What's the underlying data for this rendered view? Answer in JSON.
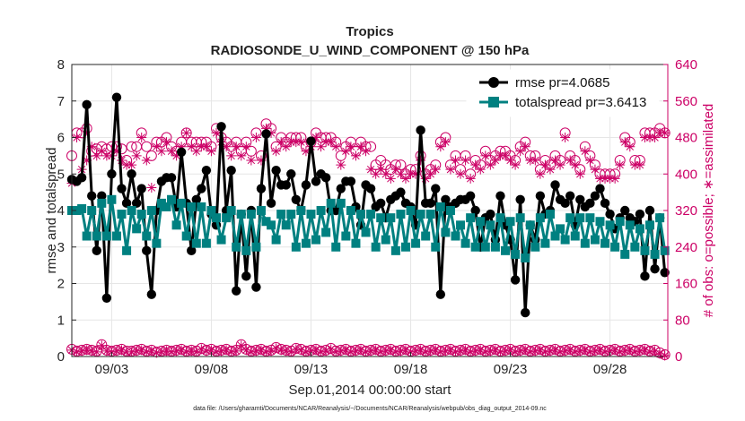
{
  "chart_data": {
    "type": "line",
    "title": "Tropics",
    "subtitle": "RADIOSONDE_U_WIND_COMPONENT @ 150 hPa",
    "xlabel": "Sep.01,2014 00:00:00 start",
    "ylabel_left": "rmse and totalspread",
    "ylabel_right": "# of obs: o=possible; ∗=assimilated",
    "footnote": "data file: /Users/gharamti/Documents/NCAR/Reanalysis/~/Documents/NCAR/Reanalysis/webpub/obs_diag_output_2014-09.nc",
    "xlim": [
      1.0,
      30.9
    ],
    "x_tick_values": [
      3,
      8,
      13,
      18,
      23,
      28
    ],
    "x_tick_labels": [
      "09/03",
      "09/08",
      "09/13",
      "09/18",
      "09/23",
      "09/28"
    ],
    "ylim_left": [
      0,
      8
    ],
    "y_ticks_left": [
      "0",
      "1",
      "2",
      "3",
      "4",
      "5",
      "6",
      "7",
      "8"
    ],
    "ylim_right": [
      0,
      640
    ],
    "y_ticks_right": [
      "0",
      "80",
      "160",
      "240",
      "320",
      "400",
      "480",
      "560",
      "640"
    ],
    "grid": true,
    "legend_position": "top-right",
    "colors": {
      "rmse": "#000000",
      "totalspread": "#008080",
      "obs": "#cc0066",
      "axis": "#262626",
      "grid": "#e6e6e6"
    },
    "x": [
      1.0,
      1.25,
      1.5,
      1.75,
      2.0,
      2.25,
      2.5,
      2.75,
      3.0,
      3.25,
      3.5,
      3.75,
      4.0,
      4.25,
      4.5,
      4.75,
      5.0,
      5.25,
      5.5,
      5.75,
      6.0,
      6.25,
      6.5,
      6.75,
      7.0,
      7.25,
      7.5,
      7.75,
      8.0,
      8.25,
      8.5,
      8.75,
      9.0,
      9.25,
      9.5,
      9.75,
      10.0,
      10.25,
      10.5,
      10.75,
      11.0,
      11.25,
      11.5,
      11.75,
      12.0,
      12.25,
      12.5,
      12.75,
      13.0,
      13.25,
      13.5,
      13.75,
      14.0,
      14.25,
      14.5,
      14.75,
      15.0,
      15.25,
      15.5,
      15.75,
      16.0,
      16.25,
      16.5,
      16.75,
      17.0,
      17.25,
      17.5,
      17.75,
      18.0,
      18.25,
      18.5,
      18.75,
      19.0,
      19.25,
      19.5,
      19.75,
      20.0,
      20.25,
      20.5,
      20.75,
      21.0,
      21.25,
      21.5,
      21.75,
      22.0,
      22.25,
      22.5,
      22.75,
      23.0,
      23.25,
      23.5,
      23.75,
      24.0,
      24.25,
      24.5,
      24.75,
      25.0,
      25.25,
      25.5,
      25.75,
      26.0,
      26.25,
      26.5,
      26.75,
      27.0,
      27.25,
      27.5,
      27.75,
      28.0,
      28.25,
      28.5,
      28.75,
      29.0,
      29.25,
      29.5,
      29.75,
      30.0,
      30.25,
      30.5,
      30.75
    ],
    "series": [
      {
        "name": "rmse",
        "legend": "rmse pr=4.0685",
        "values": [
          4.85,
          4.8,
          4.9,
          6.9,
          4.4,
          2.9,
          4.4,
          1.6,
          5.0,
          7.1,
          4.6,
          4.2,
          5.0,
          4.2,
          4.6,
          2.9,
          1.7,
          4.0,
          4.8,
          4.9,
          4.9,
          4.1,
          5.6,
          4.2,
          2.9,
          4.3,
          4.6,
          5.1,
          3.9,
          3.6,
          6.3,
          4.0,
          5.1,
          1.8,
          3.9,
          2.2,
          4.0,
          1.9,
          4.6,
          6.1,
          4.2,
          5.1,
          4.7,
          4.7,
          5.0,
          4.3,
          4.0,
          4.7,
          5.9,
          4.8,
          5.0,
          4.9,
          4.0,
          4.0,
          4.6,
          4.8,
          4.8,
          4.1,
          3.6,
          4.7,
          4.6,
          4.1,
          4.2,
          3.8,
          4.3,
          4.4,
          4.5,
          4.2,
          4.1,
          3.6,
          6.2,
          4.2,
          4.2,
          4.6,
          1.7,
          4.3,
          4.1,
          4.2,
          4.3,
          4.3,
          4.4,
          4.0,
          3.0,
          3.8,
          3.9,
          3.2,
          4.4,
          3.6,
          3.2,
          2.1,
          4.3,
          1.2,
          3.6,
          3.2,
          4.4,
          3.9,
          4.0,
          4.7,
          4.3,
          4.2,
          4.4,
          3.6,
          4.3,
          4.1,
          4.2,
          4.4,
          4.6,
          4.2,
          3.9,
          3.5,
          3.8,
          4.0,
          3.8,
          3.7,
          3.9,
          2.2,
          4.0,
          2.4,
          3.8,
          2.3
        ]
      },
      {
        "name": "totalspread",
        "legend": "totalspread pr=3.6413",
        "values": [
          4.0,
          4.0,
          4.05,
          3.3,
          4.0,
          3.3,
          4.2,
          3.3,
          4.3,
          3.3,
          3.9,
          2.9,
          4.0,
          3.5,
          3.9,
          3.3,
          4.0,
          3.1,
          4.2,
          4.1,
          4.3,
          3.6,
          4.2,
          3.3,
          4.1,
          3.1,
          4.1,
          3.1,
          4.0,
          3.8,
          3.2,
          3.8,
          4.0,
          3.0,
          3.9,
          2.9,
          3.9,
          3.0,
          4.0,
          3.7,
          3.6,
          3.2,
          3.9,
          3.6,
          3.9,
          3.0,
          4.0,
          3.1,
          3.9,
          3.2,
          4.0,
          3.4,
          4.2,
          3.0,
          4.2,
          3.3,
          4.0,
          3.1,
          3.9,
          3.4,
          3.9,
          3.0,
          3.8,
          3.2,
          3.8,
          2.9,
          3.9,
          3.0,
          4.0,
          3.1,
          3.9,
          3.3,
          3.9,
          3.0,
          4.1,
          3.4,
          4.0,
          3.3,
          3.6,
          3.1,
          3.8,
          3.0,
          3.7,
          3.0,
          3.6,
          3.0,
          3.8,
          2.9,
          3.7,
          2.8,
          3.8,
          2.7,
          3.6,
          3.0,
          3.8,
          3.1,
          3.9,
          3.3,
          3.5,
          3.2,
          3.8,
          3.3,
          3.8,
          3.1,
          3.8,
          3.2,
          3.7,
          3.1,
          3.6,
          3.0,
          3.7,
          2.8,
          3.6,
          3.0,
          3.5,
          2.9,
          3.6,
          2.8,
          3.8,
          2.9
        ]
      },
      {
        "name": "obs_possible",
        "axis": "right",
        "values": [
          440,
          490,
          490,
          500,
          450,
          455,
          460,
          455,
          460,
          460,
          455,
          430,
          460,
          460,
          490,
          460,
          440,
          470,
          470,
          480,
          460,
          450,
          470,
          490,
          470,
          470,
          470,
          470,
          460,
          500,
          480,
          470,
          460,
          470,
          450,
          470,
          450,
          490,
          440,
          510,
          500,
          460,
          480,
          470,
          480,
          480,
          480,
          460,
          470,
          490,
          480,
          480,
          480,
          470,
          440,
          460,
          470,
          450,
          470,
          460,
          460,
          420,
          430,
          420,
          410,
          420,
          420,
          400,
          410,
          410,
          440,
          400,
          410,
          420,
          470,
          480,
          420,
          440,
          410,
          440,
          400,
          430,
          420,
          450,
          430,
          440,
          450,
          450,
          440,
          430,
          460,
          470,
          440,
          440,
          410,
          430,
          420,
          440,
          430,
          490,
          440,
          430,
          410,
          460,
          440,
          420,
          400,
          400,
          400,
          400,
          430,
          480,
          470,
          430,
          430,
          490,
          490,
          490,
          500,
          490
        ]
      },
      {
        "name": "obs_assimilated",
        "axis": "right",
        "values": [
          380,
          480,
          410,
          430,
          460,
          440,
          450,
          440,
          440,
          450,
          430,
          420,
          420,
          440,
          480,
          430,
          370,
          460,
          450,
          470,
          450,
          440,
          460,
          490,
          460,
          450,
          460,
          460,
          450,
          490,
          470,
          460,
          440,
          460,
          440,
          460,
          430,
          480,
          430,
          500,
          490,
          450,
          470,
          460,
          470,
          470,
          470,
          450,
          460,
          480,
          460,
          470,
          470,
          460,
          420,
          450,
          460,
          440,
          460,
          450,
          410,
          400,
          410,
          400,
          390,
          410,
          400,
          390,
          400,
          400,
          430,
          390,
          400,
          410,
          460,
          470,
          410,
          430,
          400,
          430,
          390,
          420,
          410,
          440,
          420,
          430,
          440,
          440,
          430,
          420,
          450,
          460,
          430,
          430,
          400,
          420,
          410,
          430,
          420,
          480,
          430,
          420,
          400,
          450,
          430,
          410,
          390,
          390,
          390,
          390,
          420,
          470,
          460,
          420,
          420,
          480,
          480,
          480,
          490,
          490
        ]
      },
      {
        "name": "obs_possible_low",
        "axis": "right",
        "values": [
          16,
          12,
          14,
          16,
          14,
          12,
          26,
          14,
          12,
          14,
          16,
          12,
          12,
          14,
          16,
          12,
          14,
          10,
          12,
          14,
          12,
          14,
          16,
          12,
          14,
          12,
          18,
          14,
          16,
          12,
          14,
          16,
          12,
          14,
          26,
          16,
          12,
          14,
          16,
          12,
          14,
          20,
          16,
          14,
          12,
          18,
          16,
          12,
          14,
          16,
          12,
          14,
          18,
          12,
          14,
          16,
          12,
          14,
          16,
          12,
          14,
          16,
          12,
          14,
          16,
          12,
          14,
          16,
          12,
          14,
          16,
          12,
          14,
          16,
          12,
          14,
          16,
          12,
          14,
          16,
          12,
          14,
          16,
          12,
          14,
          16,
          12,
          14,
          16,
          12,
          14,
          16,
          12,
          14,
          16,
          12,
          14,
          16,
          12,
          14,
          16,
          12,
          14,
          16,
          12,
          14,
          16,
          12,
          14,
          16,
          12,
          14,
          16,
          12,
          14,
          16,
          12,
          14,
          8,
          4
        ]
      },
      {
        "name": "obs_assimilated_low",
        "axis": "right",
        "values": [
          14,
          10,
          12,
          14,
          12,
          10,
          24,
          12,
          10,
          12,
          14,
          10,
          10,
          12,
          14,
          10,
          12,
          8,
          10,
          12,
          10,
          12,
          14,
          10,
          12,
          10,
          16,
          12,
          14,
          10,
          12,
          14,
          10,
          12,
          24,
          14,
          10,
          12,
          14,
          10,
          12,
          18,
          14,
          12,
          10,
          16,
          14,
          10,
          12,
          14,
          10,
          12,
          16,
          10,
          12,
          14,
          10,
          12,
          14,
          10,
          12,
          14,
          10,
          12,
          14,
          10,
          12,
          14,
          10,
          12,
          14,
          10,
          12,
          14,
          10,
          12,
          14,
          10,
          12,
          14,
          10,
          12,
          14,
          10,
          12,
          14,
          10,
          12,
          14,
          10,
          12,
          14,
          10,
          12,
          14,
          10,
          12,
          14,
          10,
          12,
          14,
          10,
          12,
          14,
          10,
          12,
          14,
          10,
          12,
          14,
          10,
          12,
          14,
          10,
          12,
          14,
          10,
          12,
          6,
          2
        ]
      }
    ]
  }
}
